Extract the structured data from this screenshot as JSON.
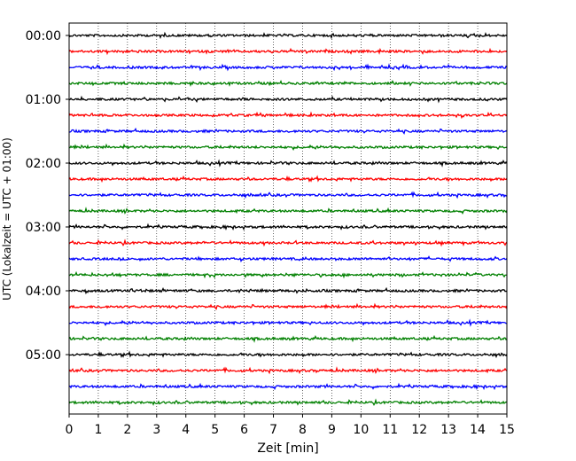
{
  "chart_data": {
    "type": "line",
    "title": "",
    "xlabel": "Zeit  [min]",
    "ylabel": "UTC (Lokalzeit = UTC + 01:00)",
    "xlim": [
      0,
      15
    ],
    "x_ticks": [
      "0",
      "1",
      "2",
      "3",
      "4",
      "5",
      "6",
      "7",
      "8",
      "9",
      "10",
      "11",
      "12",
      "13",
      "14",
      "15"
    ],
    "y_tick_labels": [
      "00:00",
      "01:00",
      "02:00",
      "03:00",
      "04:00",
      "05:00"
    ],
    "trace_interval_min": 15,
    "trace_count": 24,
    "trace_colors": [
      "#000000",
      "#ff0000",
      "#0000ff",
      "#008000"
    ],
    "vertical_grid": "dotted",
    "legend": "none"
  }
}
